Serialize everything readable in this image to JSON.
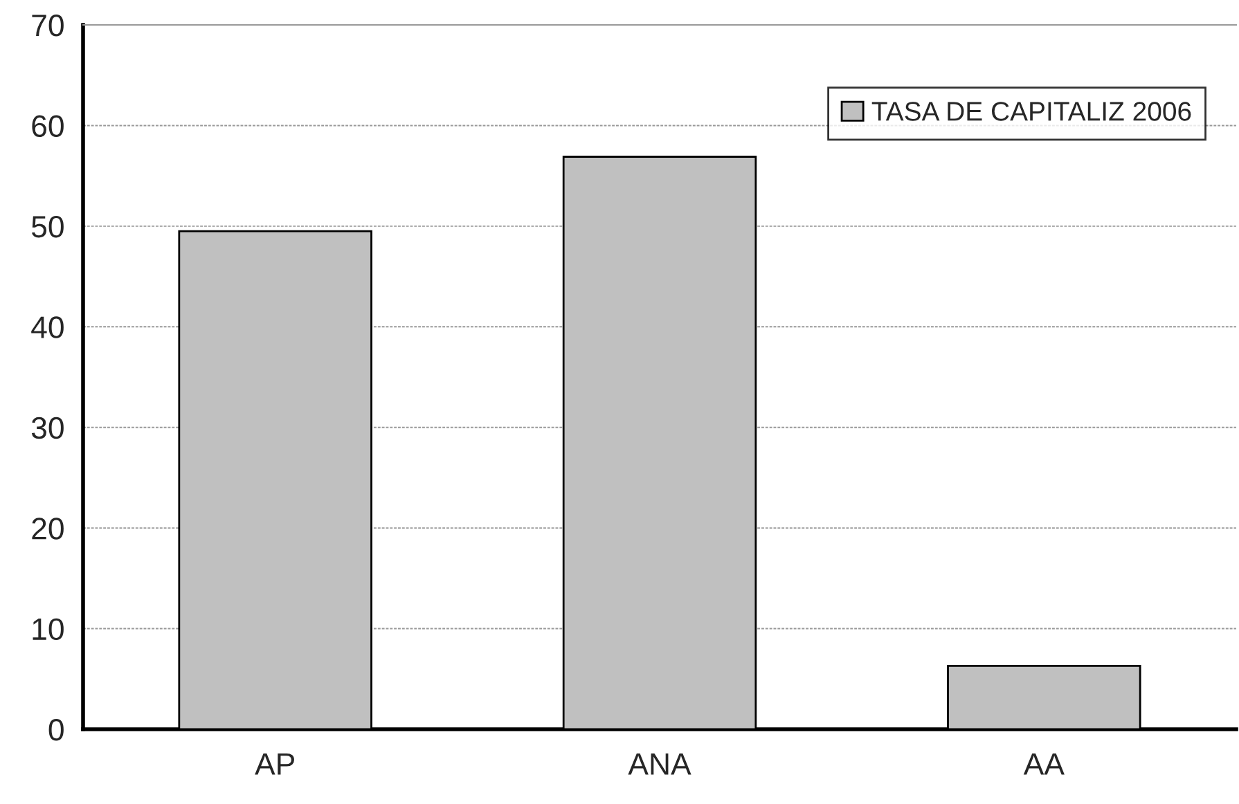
{
  "chart_data": {
    "type": "bar",
    "categories": [
      "AP",
      "ANA",
      "AA"
    ],
    "series": [
      {
        "name": "TASA DE CAPITALIZ 2006",
        "color": "#c0c0c0",
        "values": [
          49.5,
          56.9,
          6.3
        ]
      }
    ],
    "ylim": [
      0,
      70
    ],
    "yticks": [
      0,
      10,
      20,
      30,
      40,
      50,
      60,
      70
    ],
    "grid": "y",
    "legend": "top right"
  }
}
